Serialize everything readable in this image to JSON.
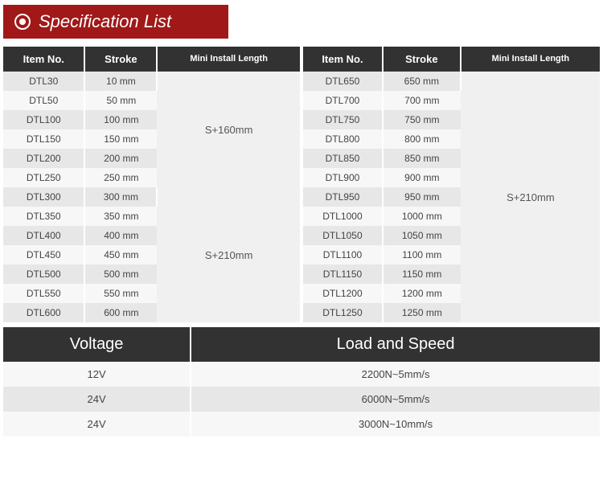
{
  "title": "Specification List",
  "columns": {
    "item": "Item No.",
    "stroke": "Stroke",
    "mini": "Mini Install Length"
  },
  "left": {
    "rows": [
      {
        "item": "DTL30",
        "stroke": "10 mm"
      },
      {
        "item": "DTL50",
        "stroke": "50 mm"
      },
      {
        "item": "DTL100",
        "stroke": "100 mm"
      },
      {
        "item": "DTL150",
        "stroke": "150 mm"
      },
      {
        "item": "DTL200",
        "stroke": "200 mm"
      },
      {
        "item": "DTL250",
        "stroke": "250 mm"
      },
      {
        "item": "DTL300",
        "stroke": "300 mm"
      },
      {
        "item": "DTL350",
        "stroke": "350 mm"
      },
      {
        "item": "DTL400",
        "stroke": "400 mm"
      },
      {
        "item": "DTL450",
        "stroke": "450 mm"
      },
      {
        "item": "DTL500",
        "stroke": "500 mm"
      },
      {
        "item": "DTL550",
        "stroke": "550 mm"
      },
      {
        "item": "DTL600",
        "stroke": "600 mm"
      }
    ],
    "mini_groups": [
      {
        "label": "S+160mm",
        "span": 6
      },
      {
        "label": "S+210mm",
        "span": 7
      }
    ]
  },
  "right": {
    "rows": [
      {
        "item": "DTL650",
        "stroke": "650 mm"
      },
      {
        "item": "DTL700",
        "stroke": "700 mm"
      },
      {
        "item": "DTL750",
        "stroke": "750 mm"
      },
      {
        "item": "DTL800",
        "stroke": "800 mm"
      },
      {
        "item": "DTL850",
        "stroke": "850 mm"
      },
      {
        "item": "DTL900",
        "stroke": "900 mm"
      },
      {
        "item": "DTL950",
        "stroke": "950 mm"
      },
      {
        "item": "DTL1000",
        "stroke": "1000 mm"
      },
      {
        "item": "DTL1050",
        "stroke": "1050 mm"
      },
      {
        "item": "DTL1100",
        "stroke": "1100 mm"
      },
      {
        "item": "DTL1150",
        "stroke": "1150 mm"
      },
      {
        "item": "DTL1200",
        "stroke": "1200 mm"
      },
      {
        "item": "DTL1250",
        "stroke": "1250 mm"
      }
    ],
    "mini_groups": [
      {
        "label": "S+210mm",
        "span": 13
      }
    ]
  },
  "bottom": {
    "headers": {
      "voltage": "Voltage",
      "load": "Load and Speed"
    },
    "rows": [
      {
        "voltage": "12V",
        "load": "2200N~5mm/s"
      },
      {
        "voltage": "24V",
        "load": "6000N~5mm/s"
      },
      {
        "voltage": "24V",
        "load": "3000N~10mm/s"
      }
    ]
  },
  "style": {
    "banner_bg": "#a01818",
    "th_bg": "#323232",
    "row_even_bg": "#e7e7e7",
    "row_odd_bg": "#f7f7f7",
    "mini_bg": "#f0f0f0",
    "text_color": "#444444",
    "title_fontsize": 22,
    "th_fontsize": 13,
    "td_fontsize": 12,
    "bottom_th_fontsize": 20
  }
}
